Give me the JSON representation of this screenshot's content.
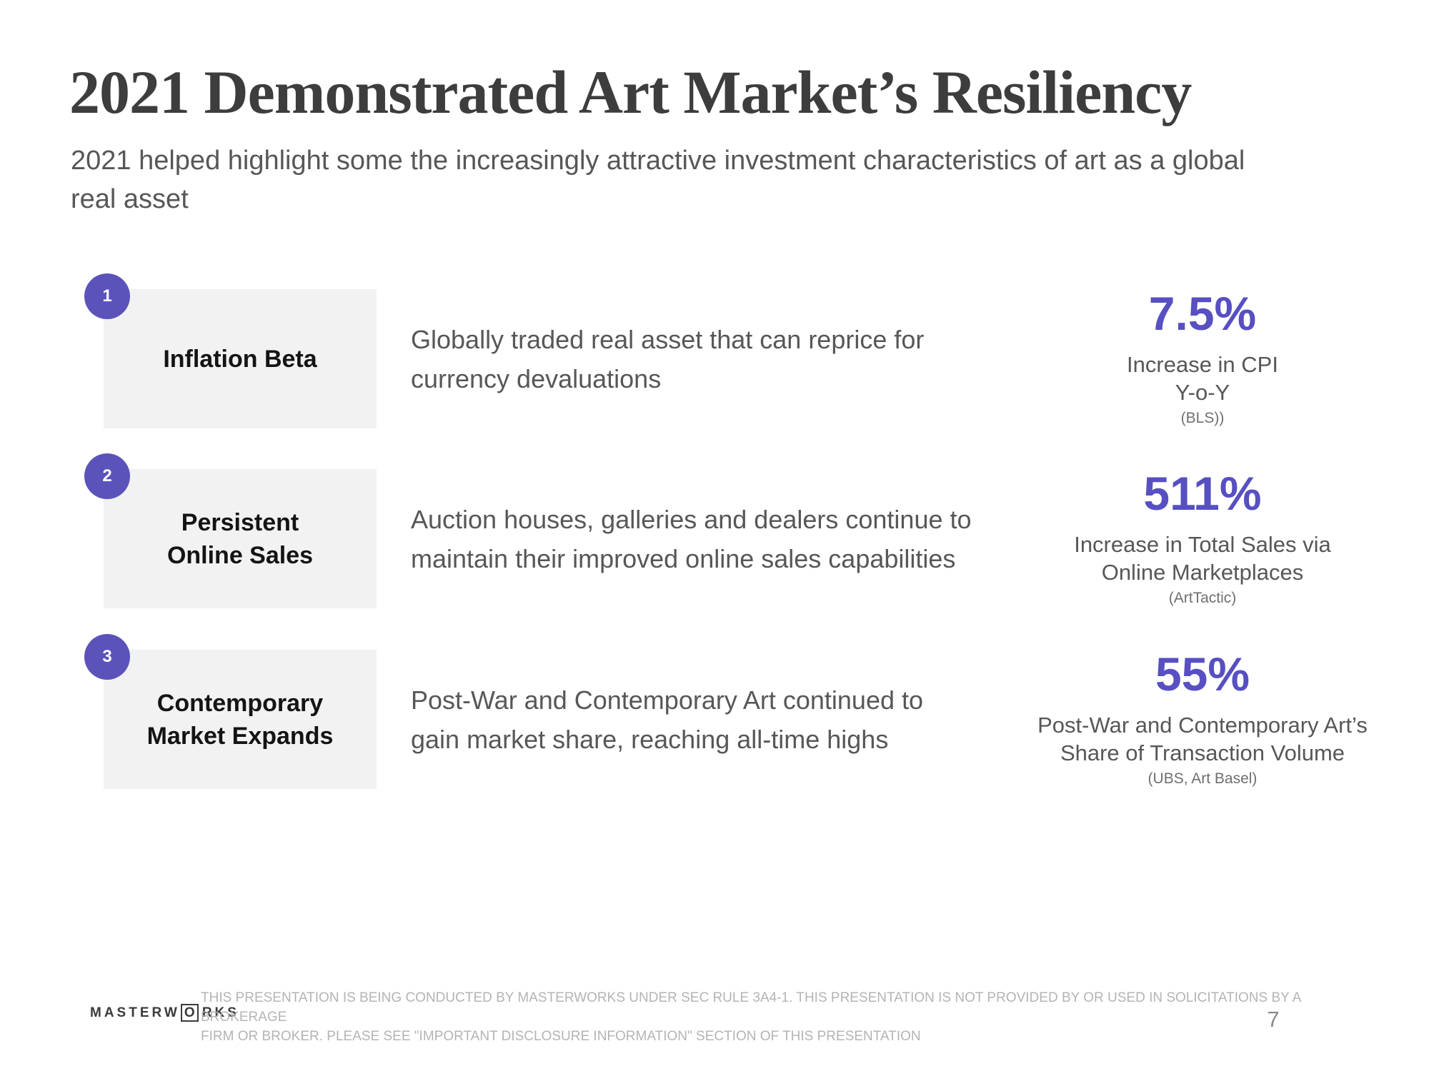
{
  "theme": {
    "accent": "#5b53ba",
    "stat": "#574fc2",
    "box_bg": "#f2f2f2",
    "text": "#57575a",
    "title": "#3d3d3d"
  },
  "header": {
    "title": "2021 Demonstrated Art Market’s Resiliency",
    "subtitle_lines": [
      "2021 helped highlight some the increasingly attractive investment characteristics of art as a global",
      "real asset"
    ]
  },
  "rows": [
    {
      "number": "1",
      "label_lines": [
        "Inflation Beta"
      ],
      "description_lines": [
        "Globally traded real asset that can reprice for",
        "currency devaluations"
      ],
      "stat_value": "7.5%",
      "stat_desc_lines": [
        "Increase in CPI",
        "Y-o-Y"
      ],
      "stat_source": "(BLS))"
    },
    {
      "number": "2",
      "label_lines": [
        "Persistent",
        "Online Sales"
      ],
      "description_lines": [
        "Auction houses, galleries and dealers continue to",
        "maintain their improved online sales capabilities"
      ],
      "stat_value": "511%",
      "stat_desc_lines": [
        "Increase in Total Sales via",
        "Online Marketplaces"
      ],
      "stat_source": "(ArtTactic)"
    },
    {
      "number": "3",
      "label_lines": [
        "Contemporary",
        "Market Expands"
      ],
      "description_lines": [
        "Post-War and Contemporary Art continued to",
        "gain market share, reaching all-time highs"
      ],
      "stat_value": "55%",
      "stat_desc_lines": [
        "Post-War and Contemporary Art’s",
        "Share of Transaction Volume"
      ],
      "stat_source": "(UBS, Art Basel)"
    }
  ],
  "footer": {
    "logo_prefix": "MASTERW",
    "logo_boxed_letter": "O",
    "logo_suffix": "RKS",
    "disclaimer_lines": [
      "THIS PRESENTATION  IS BEING CONDUCTED BY MASTERWORKS UNDER SEC RULE 3A4-1. THIS PRESENTATION  IS NOT PROVIDED BY OR USED IN SOLICITATIONS BY A BROKERAGE",
      "FIRM OR BROKER. PLEASE SEE \"IMPORTANT DISCLOSURE INFORMATION\" SECTION OF THIS PRESENTATION"
    ],
    "page_number": "7"
  }
}
